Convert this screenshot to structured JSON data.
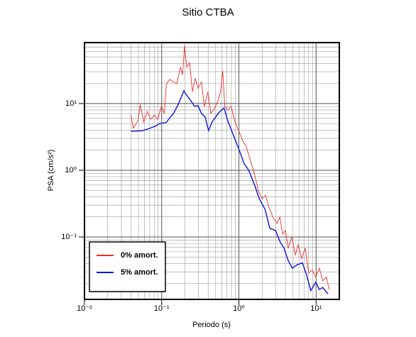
{
  "chart_data": {
    "type": "line",
    "title": "Sitio CTBA",
    "x_label": "Periodo (s)",
    "y_label": "PSA (cm/s²)",
    "log_x": true,
    "log_y": true,
    "grid": true,
    "legend_position": "lower left",
    "xlim": [
      0.01,
      20
    ],
    "ylim": [
      0.0116,
      82
    ],
    "xticks": [
      {
        "value": 0.01,
        "label": "10⁻²"
      },
      {
        "value": 0.1,
        "label": "10⁻¹"
      },
      {
        "value": 1,
        "label": "10⁰"
      },
      {
        "value": 10,
        "label": "10¹"
      }
    ],
    "yticks": [
      {
        "value": 0.1,
        "label": "10⁻¹"
      },
      {
        "value": 1,
        "label": "10⁰"
      },
      {
        "value": 10,
        "label": "10¹"
      }
    ],
    "series": [
      {
        "name": "0% amort.",
        "color": "#e8322e",
        "x": [
          0.04,
          0.0427,
          0.0494,
          0.0527,
          0.0585,
          0.065,
          0.0722,
          0.0802,
          0.0891,
          0.099,
          0.108,
          0.115,
          0.127,
          0.142,
          0.157,
          0.175,
          0.186,
          0.198,
          0.211,
          0.23,
          0.25,
          0.272,
          0.295,
          0.328,
          0.357,
          0.397,
          0.432,
          0.489,
          0.543,
          0.579,
          0.617,
          0.657,
          0.714,
          0.794,
          0.881,
          1.0,
          1.135,
          1.234,
          1.4,
          1.59,
          1.8,
          2.0,
          2.22,
          2.42,
          2.74,
          3.11,
          3.39,
          3.68,
          4.01,
          4.36,
          4.84,
          5.38,
          5.85,
          6.5,
          7.22,
          8.02,
          8.91,
          9.9,
          11.0,
          12.2,
          13.6,
          14.8
        ],
        "values": [
          6.7,
          4.3,
          5.5,
          9.7,
          5.3,
          7.6,
          5.8,
          6.7,
          5.8,
          9.1,
          7.1,
          19.8,
          23,
          21,
          19.8,
          35,
          27,
          74,
          35,
          41,
          15,
          24,
          17,
          21,
          9,
          15,
          7.1,
          8.6,
          11.6,
          15,
          30.7,
          9.1,
          8.0,
          9.1,
          5.5,
          3.85,
          2.66,
          2.36,
          1.44,
          0.88,
          0.48,
          0.375,
          0.42,
          0.29,
          0.2,
          0.16,
          0.2,
          0.11,
          0.125,
          0.068,
          0.1,
          0.053,
          0.076,
          0.047,
          0.068,
          0.029,
          0.032,
          0.025,
          0.034,
          0.022,
          0.025,
          0.0163
        ]
      },
      {
        "name": "5% amort.",
        "color": "#1010e0",
        "x": [
          0.04,
          0.055,
          0.0678,
          0.0836,
          0.0929,
          0.115,
          0.127,
          0.142,
          0.164,
          0.194,
          0.216,
          0.239,
          0.266,
          0.295,
          0.328,
          0.365,
          0.405,
          0.45,
          0.5,
          0.555,
          0.643,
          0.714,
          0.845,
          1.0,
          1.16,
          1.34,
          1.59,
          1.84,
          2.18,
          2.52,
          2.99,
          3.39,
          3.84,
          4.36,
          4.94,
          5.61,
          6.64,
          7.53,
          8.54,
          9.9,
          11.0,
          12.2,
          14.2
        ],
        "values": [
          3.85,
          3.9,
          4.2,
          4.6,
          5.0,
          5.2,
          6.1,
          7.1,
          9.7,
          15.5,
          12.8,
          11.0,
          9.1,
          9.3,
          7.1,
          6.3,
          3.95,
          5.3,
          6.3,
          7.4,
          8.6,
          5.6,
          3.4,
          2.08,
          1.28,
          1.0,
          0.61,
          0.375,
          0.26,
          0.134,
          0.125,
          0.086,
          0.068,
          0.044,
          0.034,
          0.038,
          0.041,
          0.027,
          0.0157,
          0.021,
          0.0163,
          0.0175,
          0.0141
        ]
      }
    ]
  }
}
